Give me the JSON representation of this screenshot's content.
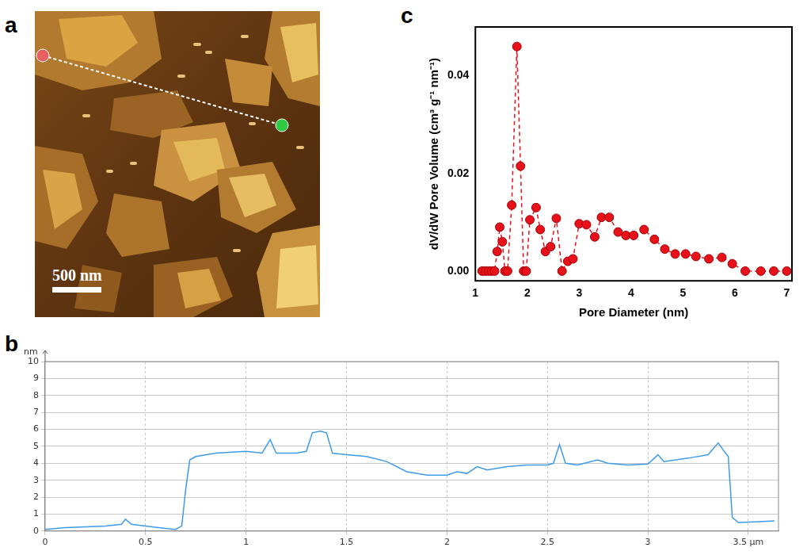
{
  "image": {
    "panel": "a",
    "scale_bar": "500 nm"
  },
  "chart_data": [
    {
      "panel": "b",
      "type": "line",
      "grid": true,
      "tick_labels": true,
      "y_label": "nm",
      "xlim": [
        0,
        3.65
      ],
      "xticks": [
        0,
        0.5,
        1,
        1.5,
        2,
        2.5,
        3,
        {
          "value": 3.5,
          "label": "3.5 µm"
        }
      ],
      "ylim": [
        0,
        10
      ],
      "yticks": [
        0,
        1,
        2,
        3,
        4,
        5,
        6,
        7,
        8,
        9,
        10
      ],
      "series": [
        {
          "color": "#3d9be9",
          "line_style": "solid",
          "x": [
            0,
            0.1,
            0.2,
            0.3,
            0.38,
            0.4,
            0.43,
            0.5,
            0.6,
            0.65,
            0.68,
            0.7,
            0.72,
            0.75,
            0.85,
            1.0,
            1.08,
            1.12,
            1.15,
            1.25,
            1.3,
            1.33,
            1.37,
            1.4,
            1.43,
            1.5,
            1.6,
            1.7,
            1.8,
            1.9,
            2.0,
            2.05,
            2.1,
            2.15,
            2.2,
            2.3,
            2.4,
            2.5,
            2.53,
            2.56,
            2.59,
            2.65,
            2.75,
            2.8,
            2.9,
            3.0,
            3.05,
            3.08,
            3.2,
            3.3,
            3.35,
            3.38,
            3.4,
            3.42,
            3.45,
            3.55,
            3.63
          ],
          "values": [
            0.1,
            0.2,
            0.25,
            0.3,
            0.4,
            0.7,
            0.4,
            0.3,
            0.15,
            0.1,
            0.3,
            2.5,
            4.2,
            4.4,
            4.6,
            4.7,
            4.6,
            5.4,
            4.6,
            4.6,
            4.7,
            5.8,
            5.9,
            5.8,
            4.6,
            4.5,
            4.4,
            4.1,
            3.5,
            3.3,
            3.3,
            3.5,
            3.4,
            3.8,
            3.6,
            3.8,
            3.9,
            3.9,
            4.0,
            5.1,
            4.0,
            3.9,
            4.2,
            4.0,
            3.9,
            3.95,
            4.5,
            4.1,
            4.3,
            4.5,
            5.2,
            4.7,
            4.4,
            0.8,
            0.5,
            0.55,
            0.6
          ]
        }
      ]
    },
    {
      "panel": "c",
      "type": "line",
      "grid": false,
      "x_label": "Pore Diameter (nm)",
      "y_label": "dV/dW Pore Volume (cm³ g⁻¹ nm⁻¹)",
      "xlim": [
        1,
        7.1
      ],
      "xticks": [
        1,
        2,
        3,
        4,
        5,
        6,
        7
      ],
      "ylim": [
        -0.002,
        0.05
      ],
      "yticks": [
        {
          "value": 0,
          "label": "0.00"
        },
        0.02,
        0.04
      ],
      "series": [
        {
          "color": "#e8101a",
          "marker": "circle",
          "line_style": "dashed",
          "x": [
            1.13,
            1.19,
            1.25,
            1.31,
            1.37,
            1.42,
            1.47,
            1.52,
            1.57,
            1.62,
            1.7,
            1.8,
            1.87,
            1.93,
            1.98,
            2.05,
            2.17,
            2.25,
            2.35,
            2.45,
            2.56,
            2.67,
            2.78,
            2.88,
            3.0,
            3.14,
            3.3,
            3.43,
            3.58,
            3.75,
            3.9,
            4.05,
            4.25,
            4.45,
            4.65,
            4.85,
            5.05,
            5.25,
            5.5,
            5.75,
            5.95,
            6.2,
            6.5,
            6.75,
            7.0
          ],
          "values": [
            0,
            0,
            0,
            0,
            0,
            0.004,
            0.009,
            0.006,
            0,
            0,
            0.0135,
            0.046,
            0.0215,
            0,
            0,
            0.0105,
            0.013,
            0.0085,
            0.004,
            0.005,
            0.0108,
            0,
            0.002,
            0.0025,
            0.0097,
            0.0095,
            0.007,
            0.011,
            0.011,
            0.008,
            0.0073,
            0.0073,
            0.0085,
            0.0065,
            0.0045,
            0.0035,
            0.0035,
            0.003,
            0.0025,
            0.0028,
            0.0015,
            0,
            0,
            0,
            0
          ]
        }
      ]
    }
  ]
}
